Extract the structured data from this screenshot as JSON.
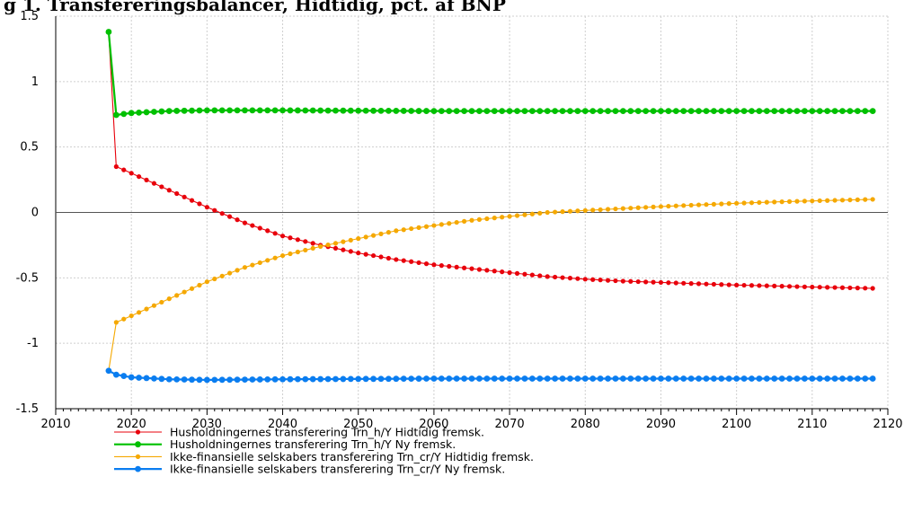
{
  "chart_data": {
    "type": "line",
    "title": "g 1. Transfereringsbalancer, Hidtidig, pct. af BNP",
    "xlabel": "",
    "ylabel": "",
    "xlim": [
      2010,
      2120
    ],
    "ylim": [
      -1.5,
      1.5
    ],
    "x_ticks": [
      2010,
      2020,
      2030,
      2040,
      2050,
      2060,
      2070,
      2080,
      2090,
      2100,
      2110,
      2120
    ],
    "y_ticks": [
      -1.5,
      -1,
      -0.5,
      0,
      0.5,
      1,
      1.5
    ],
    "y_tick_labels": [
      "-1.5",
      "-1",
      "-0.5",
      "0",
      "0.5",
      "1",
      "1.5"
    ],
    "grid": true,
    "legend_position": "bottom",
    "x_start": 2017,
    "x_end": 2118,
    "series": [
      {
        "name": "Husholdningernes transferering Trn_h/Y Hidtidig fremsk.",
        "color": "#e8000b",
        "style": "thin",
        "keypoints": [
          [
            2017,
            1.38
          ],
          [
            2018,
            0.35
          ],
          [
            2020,
            0.3
          ],
          [
            2025,
            0.17
          ],
          [
            2030,
            0.04
          ],
          [
            2035,
            -0.08
          ],
          [
            2040,
            -0.18
          ],
          [
            2045,
            -0.25
          ],
          [
            2050,
            -0.31
          ],
          [
            2055,
            -0.36
          ],
          [
            2060,
            -0.4
          ],
          [
            2065,
            -0.43
          ],
          [
            2070,
            -0.46
          ],
          [
            2075,
            -0.49
          ],
          [
            2080,
            -0.51
          ],
          [
            2085,
            -0.525
          ],
          [
            2090,
            -0.535
          ],
          [
            2095,
            -0.545
          ],
          [
            2100,
            -0.555
          ],
          [
            2105,
            -0.562
          ],
          [
            2110,
            -0.57
          ],
          [
            2118,
            -0.58
          ]
        ]
      },
      {
        "name": "Husholdningernes transferering Trn_h/Y Ny fremsk.",
        "color": "#00c000",
        "style": "thick",
        "keypoints": [
          [
            2017,
            1.38
          ],
          [
            2018,
            0.745
          ],
          [
            2020,
            0.76
          ],
          [
            2025,
            0.775
          ],
          [
            2030,
            0.78
          ],
          [
            2040,
            0.78
          ],
          [
            2060,
            0.775
          ],
          [
            2080,
            0.775
          ],
          [
            2100,
            0.775
          ],
          [
            2118,
            0.775
          ]
        ]
      },
      {
        "name": "Ikke-finansielle selskabers transferering Trn_cr/Y Hidtidig fremsk.",
        "color": "#f5a800",
        "style": "thin",
        "keypoints": [
          [
            2017,
            -1.21
          ],
          [
            2018,
            -0.84
          ],
          [
            2020,
            -0.79
          ],
          [
            2025,
            -0.66
          ],
          [
            2030,
            -0.53
          ],
          [
            2035,
            -0.42
          ],
          [
            2040,
            -0.33
          ],
          [
            2045,
            -0.26
          ],
          [
            2050,
            -0.2
          ],
          [
            2055,
            -0.14
          ],
          [
            2060,
            -0.1
          ],
          [
            2065,
            -0.06
          ],
          [
            2070,
            -0.03
          ],
          [
            2075,
            0.0
          ],
          [
            2080,
            0.015
          ],
          [
            2085,
            0.03
          ],
          [
            2090,
            0.045
          ],
          [
            2095,
            0.058
          ],
          [
            2100,
            0.07
          ],
          [
            2105,
            0.08
          ],
          [
            2110,
            0.088
          ],
          [
            2118,
            0.1
          ]
        ]
      },
      {
        "name": "Ikke-finansielle selskabers transferering Trn_cr/Y Ny fremsk.",
        "color": "#0a7df0",
        "style": "thick",
        "keypoints": [
          [
            2017,
            -1.21
          ],
          [
            2018,
            -1.24
          ],
          [
            2020,
            -1.26
          ],
          [
            2025,
            -1.275
          ],
          [
            2030,
            -1.28
          ],
          [
            2040,
            -1.275
          ],
          [
            2060,
            -1.27
          ],
          [
            2080,
            -1.27
          ],
          [
            2100,
            -1.27
          ],
          [
            2118,
            -1.27
          ]
        ]
      }
    ]
  }
}
